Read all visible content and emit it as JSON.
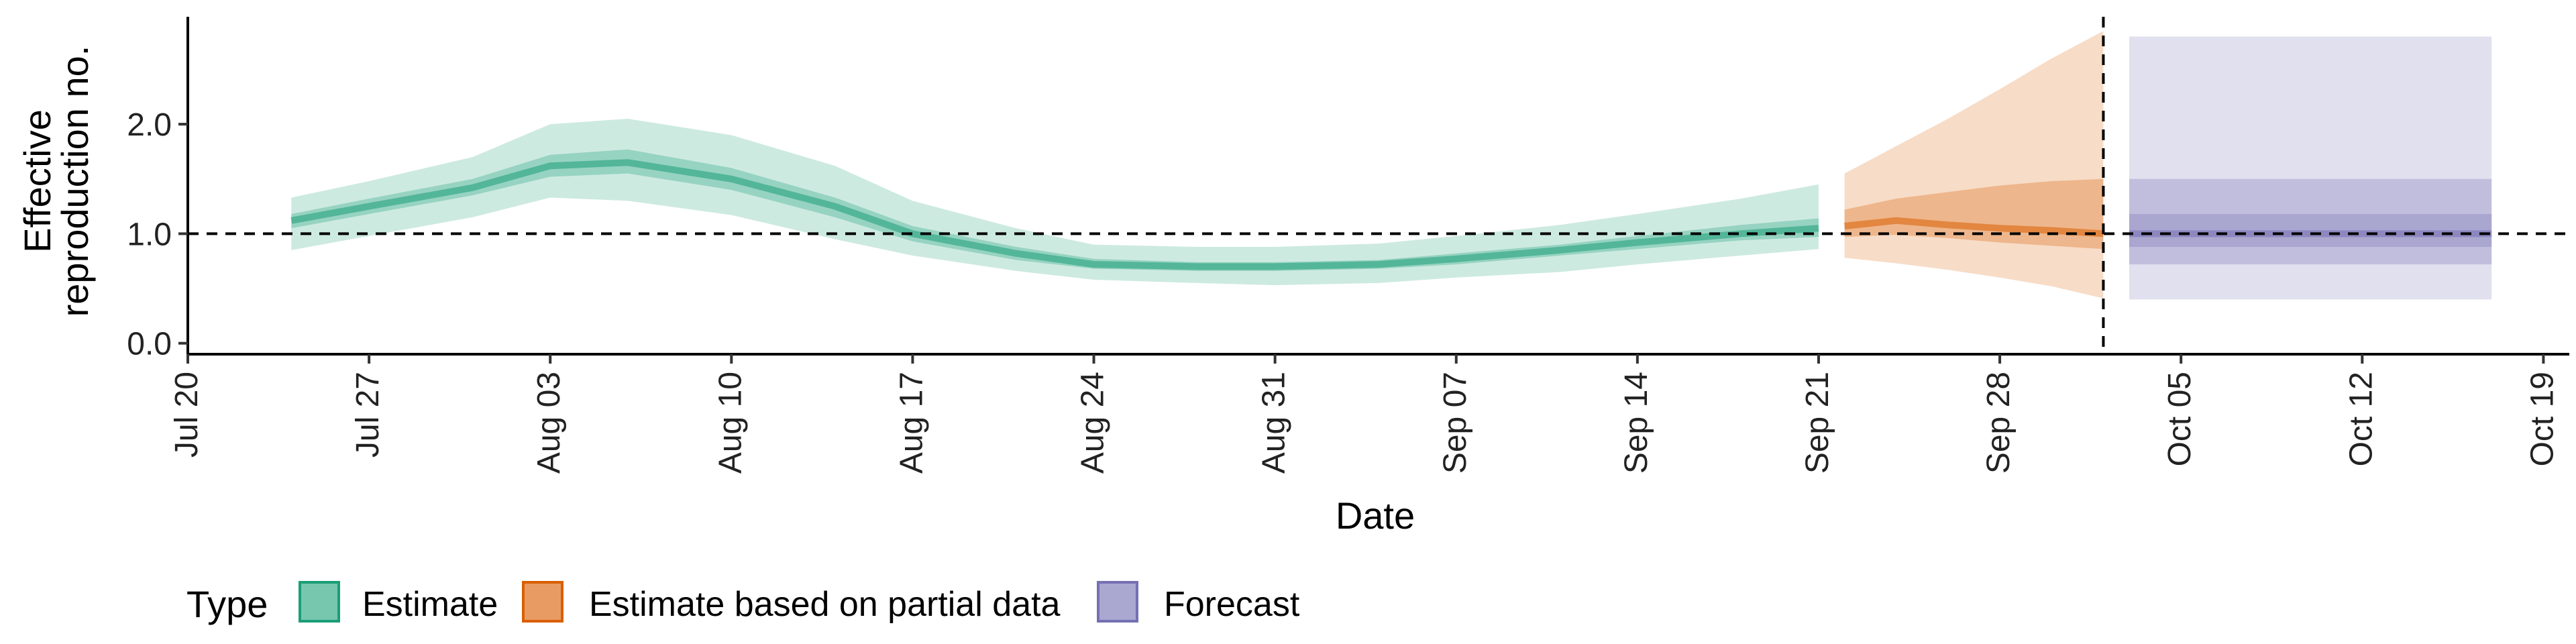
{
  "chart_data": {
    "type": "area",
    "xlabel": "Date",
    "ylabel": "Effective reproduction no.",
    "ylabel_lines": [
      "Effective",
      "reproduction no."
    ],
    "xlim": [
      "2020-07-20",
      "2020-10-20"
    ],
    "ylim": [
      -0.1,
      2.95
    ],
    "x_ticks": [
      "2020-07-20",
      "2020-07-27",
      "2020-08-03",
      "2020-08-10",
      "2020-08-17",
      "2020-08-24",
      "2020-08-31",
      "2020-09-07",
      "2020-09-14",
      "2020-09-21",
      "2020-09-28",
      "2020-10-05",
      "2020-10-12",
      "2020-10-19"
    ],
    "x_tick_labels": [
      "Jul 20",
      "Jul 27",
      "Aug 03",
      "Aug 10",
      "Aug 17",
      "Aug 24",
      "Aug 31",
      "Sep 07",
      "Sep 14",
      "Sep 21",
      "Sep 28",
      "Oct 05",
      "Oct 12",
      "Oct 19"
    ],
    "y_ticks": [
      0.0,
      1.0,
      2.0
    ],
    "y_tick_labels": [
      "0.0",
      "1.0",
      "2.0"
    ],
    "reference_line_y": 1.0,
    "reference_line_date": "2020-10-02",
    "grid": false,
    "legend": {
      "title": "Type",
      "position": "bottom-left",
      "entries": [
        "Estimate",
        "Estimate based on partial data",
        "Forecast"
      ]
    },
    "colors": {
      "Estimate": "#1b9e77",
      "Estimate based on partial data": "#d95f02",
      "Forecast": "#7570b3"
    },
    "series": [
      {
        "name": "Estimate",
        "x": [
          "2020-07-24",
          "2020-07-27",
          "2020-07-31",
          "2020-08-03",
          "2020-08-06",
          "2020-08-10",
          "2020-08-14",
          "2020-08-17",
          "2020-08-21",
          "2020-08-24",
          "2020-08-28",
          "2020-08-31",
          "2020-09-04",
          "2020-09-07",
          "2020-09-11",
          "2020-09-14",
          "2020-09-18",
          "2020-09-21"
        ],
        "median": [
          1.12,
          1.25,
          1.42,
          1.62,
          1.65,
          1.5,
          1.25,
          1.0,
          0.82,
          0.72,
          0.7,
          0.7,
          0.72,
          0.77,
          0.85,
          0.92,
          1.0,
          1.05
        ],
        "lower_50": [
          1.05,
          1.18,
          1.35,
          1.52,
          1.55,
          1.4,
          1.15,
          0.93,
          0.76,
          0.68,
          0.66,
          0.66,
          0.68,
          0.72,
          0.8,
          0.86,
          0.94,
          0.97
        ],
        "upper_50": [
          1.18,
          1.32,
          1.5,
          1.72,
          1.77,
          1.6,
          1.33,
          1.07,
          0.88,
          0.77,
          0.74,
          0.74,
          0.76,
          0.82,
          0.9,
          0.98,
          1.08,
          1.14
        ],
        "lower_90": [
          0.85,
          0.98,
          1.15,
          1.33,
          1.3,
          1.17,
          0.95,
          0.8,
          0.66,
          0.58,
          0.55,
          0.53,
          0.55,
          0.6,
          0.65,
          0.72,
          0.8,
          0.86
        ],
        "upper_90": [
          1.33,
          1.48,
          1.7,
          2.0,
          2.05,
          1.9,
          1.62,
          1.3,
          1.05,
          0.9,
          0.88,
          0.88,
          0.91,
          0.98,
          1.08,
          1.18,
          1.32,
          1.45
        ]
      },
      {
        "name": "Estimate based on partial data",
        "x": [
          "2020-09-22",
          "2020-09-24",
          "2020-09-26",
          "2020-09-28",
          "2020-09-30",
          "2020-10-02"
        ],
        "median": [
          1.07,
          1.12,
          1.08,
          1.05,
          1.03,
          1.0
        ],
        "lower_50": [
          0.97,
          0.99,
          0.96,
          0.92,
          0.89,
          0.86
        ],
        "upper_50": [
          1.22,
          1.32,
          1.38,
          1.44,
          1.48,
          1.5
        ],
        "lower_90": [
          0.78,
          0.73,
          0.67,
          0.6,
          0.52,
          0.41
        ],
        "upper_90": [
          1.55,
          1.8,
          2.05,
          2.32,
          2.6,
          2.85
        ]
      },
      {
        "name": "Forecast",
        "x": [
          "2020-10-03",
          "2020-10-17"
        ],
        "median": [
          1.0,
          1.0
        ],
        "lower_20": [
          0.88,
          0.88
        ],
        "upper_20": [
          1.18,
          1.18
        ],
        "lower_50": [
          0.72,
          0.72
        ],
        "upper_50": [
          1.5,
          1.5
        ],
        "lower_90": [
          0.4,
          0.4
        ],
        "upper_90": [
          2.8,
          2.8
        ]
      }
    ]
  }
}
